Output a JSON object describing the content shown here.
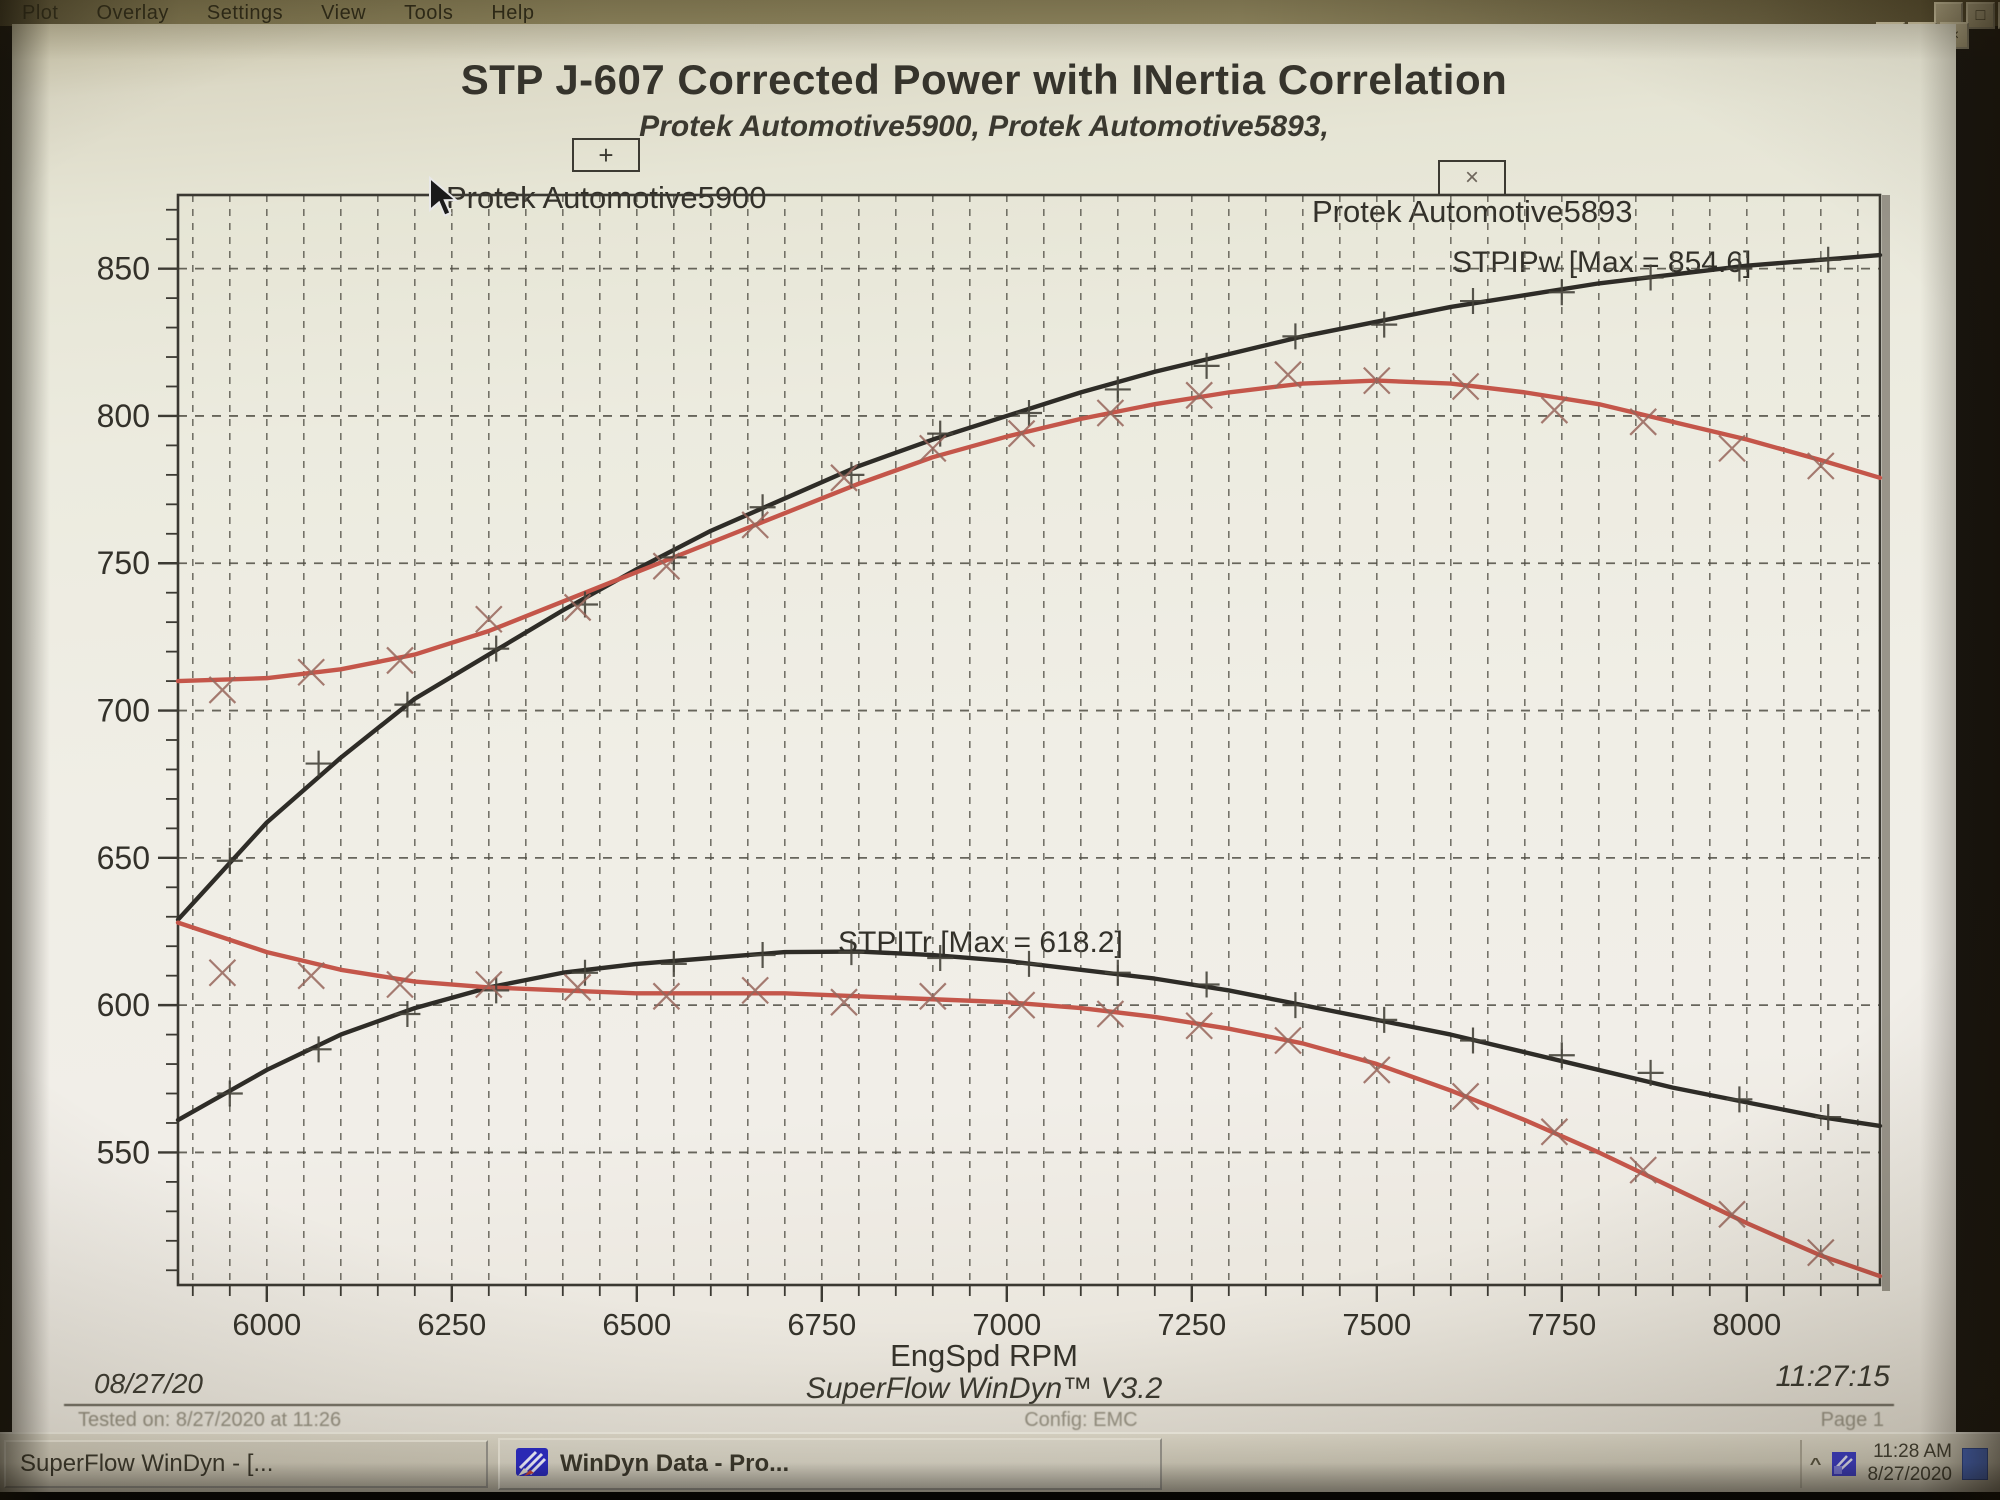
{
  "menu": {
    "items": [
      "Plot",
      "Overlay",
      "Settings",
      "View",
      "Tools",
      "Help"
    ]
  },
  "window_controls": {
    "minimize": "_",
    "maximize": "□",
    "close": "×"
  },
  "chart_data": {
    "type": "line",
    "title": "STP J-607 Corrected Power with INertia Correlation",
    "subtitle": "Protek Automotive5900, Protek Automotive5893,",
    "xlabel": "EngSpd RPM",
    "ylabel": "",
    "x_range": [
      5880,
      8180
    ],
    "y_range": [
      505,
      875
    ],
    "x_ticks": [
      6000,
      6250,
      6500,
      6750,
      7000,
      7250,
      7500,
      7750,
      8000
    ],
    "y_ticks": [
      550,
      600,
      650,
      700,
      750,
      800,
      850
    ],
    "x_minor_step": 50,
    "y_minor_tick_step": 10,
    "grid": "dashed",
    "legend": [
      {
        "symbol": "+",
        "label": "Protek Automotive5900"
      },
      {
        "symbol": "×",
        "label": "Protek Automotive5893"
      }
    ],
    "annotations": [
      "STPIPw [Max = 854.6]",
      "STPITr [Max = 618.2]"
    ],
    "series": [
      {
        "id": "stpipw-5900",
        "channel": "STPIPw",
        "run": "Protek Automotive5900",
        "color": "#2e2c27",
        "marker": "plus",
        "marker_color": "#45423a",
        "max": 854.6,
        "line": [
          [
            5880,
            629
          ],
          [
            6000,
            662
          ],
          [
            6100,
            684
          ],
          [
            6200,
            704
          ],
          [
            6300,
            719
          ],
          [
            6400,
            734
          ],
          [
            6500,
            748
          ],
          [
            6600,
            761
          ],
          [
            6700,
            772
          ],
          [
            6800,
            783
          ],
          [
            6900,
            792
          ],
          [
            7000,
            800
          ],
          [
            7100,
            808
          ],
          [
            7200,
            815
          ],
          [
            7300,
            821
          ],
          [
            7400,
            827
          ],
          [
            7500,
            832
          ],
          [
            7600,
            837
          ],
          [
            7700,
            841
          ],
          [
            7800,
            845
          ],
          [
            7900,
            848
          ],
          [
            8000,
            851
          ],
          [
            8100,
            853
          ],
          [
            8180,
            854.6
          ]
        ],
        "points": [
          [
            5950,
            649
          ],
          [
            6070,
            682
          ],
          [
            6190,
            702
          ],
          [
            6310,
            721
          ],
          [
            6430,
            736
          ],
          [
            6550,
            752
          ],
          [
            6670,
            769
          ],
          [
            6790,
            780
          ],
          [
            6910,
            794
          ],
          [
            7030,
            801
          ],
          [
            7150,
            809
          ],
          [
            7270,
            817
          ],
          [
            7390,
            827
          ],
          [
            7510,
            831
          ],
          [
            7630,
            839
          ],
          [
            7750,
            842
          ],
          [
            7870,
            847
          ],
          [
            7990,
            850
          ],
          [
            8110,
            853
          ]
        ]
      },
      {
        "id": "stpipw-5893",
        "channel": "STPIPw",
        "run": "Protek Automotive5893",
        "color": "#c4564a",
        "marker": "cross",
        "marker_color": "#96655a",
        "max": 812,
        "line": [
          [
            5880,
            710
          ],
          [
            6000,
            711
          ],
          [
            6100,
            714
          ],
          [
            6200,
            719
          ],
          [
            6300,
            727
          ],
          [
            6400,
            737
          ],
          [
            6500,
            747
          ],
          [
            6600,
            757
          ],
          [
            6700,
            767
          ],
          [
            6800,
            777
          ],
          [
            6900,
            786
          ],
          [
            7000,
            793
          ],
          [
            7100,
            799
          ],
          [
            7200,
            804
          ],
          [
            7300,
            808
          ],
          [
            7400,
            811
          ],
          [
            7500,
            812
          ],
          [
            7600,
            811
          ],
          [
            7700,
            808
          ],
          [
            7800,
            804
          ],
          [
            7900,
            798
          ],
          [
            8000,
            792
          ],
          [
            8100,
            785
          ],
          [
            8180,
            779
          ]
        ],
        "points": [
          [
            5940,
            707
          ],
          [
            6060,
            713
          ],
          [
            6180,
            717
          ],
          [
            6300,
            731
          ],
          [
            6420,
            735
          ],
          [
            6540,
            749
          ],
          [
            6660,
            763
          ],
          [
            6780,
            779
          ],
          [
            6900,
            789
          ],
          [
            7020,
            794
          ],
          [
            7140,
            801
          ],
          [
            7260,
            807
          ],
          [
            7380,
            814
          ],
          [
            7500,
            812
          ],
          [
            7620,
            810
          ],
          [
            7740,
            802
          ],
          [
            7860,
            798
          ],
          [
            7980,
            789
          ],
          [
            8100,
            783
          ]
        ]
      },
      {
        "id": "stpitr-5900",
        "channel": "STPITr",
        "run": "Protek Automotive5900",
        "color": "#2e2c27",
        "marker": "plus",
        "marker_color": "#45423a",
        "max": 618.2,
        "line": [
          [
            5880,
            561
          ],
          [
            6000,
            578
          ],
          [
            6100,
            590
          ],
          [
            6200,
            599
          ],
          [
            6300,
            606
          ],
          [
            6400,
            611
          ],
          [
            6500,
            614
          ],
          [
            6600,
            616
          ],
          [
            6700,
            618
          ],
          [
            6800,
            618.2
          ],
          [
            6900,
            617
          ],
          [
            7000,
            615
          ],
          [
            7100,
            612
          ],
          [
            7200,
            609
          ],
          [
            7300,
            605
          ],
          [
            7400,
            600
          ],
          [
            7500,
            595
          ],
          [
            7600,
            590
          ],
          [
            7700,
            584
          ],
          [
            7800,
            578
          ],
          [
            7900,
            572
          ],
          [
            8000,
            567
          ],
          [
            8100,
            562
          ],
          [
            8180,
            559
          ]
        ],
        "points": [
          [
            5950,
            570
          ],
          [
            6070,
            585
          ],
          [
            6190,
            597
          ],
          [
            6310,
            605
          ],
          [
            6430,
            611
          ],
          [
            6550,
            614
          ],
          [
            6670,
            617
          ],
          [
            6790,
            618
          ],
          [
            6910,
            616
          ],
          [
            7030,
            614
          ],
          [
            7150,
            611
          ],
          [
            7270,
            607
          ],
          [
            7390,
            600
          ],
          [
            7510,
            595
          ],
          [
            7630,
            588
          ],
          [
            7750,
            583
          ],
          [
            7870,
            577
          ],
          [
            7990,
            568
          ],
          [
            8110,
            562
          ]
        ]
      },
      {
        "id": "stpitr-5893",
        "channel": "STPITr",
        "run": "Protek Automotive5893",
        "color": "#c4564a",
        "marker": "cross",
        "marker_color": "#96655a",
        "max": 628,
        "line": [
          [
            5880,
            628
          ],
          [
            6000,
            618
          ],
          [
            6100,
            612
          ],
          [
            6200,
            608
          ],
          [
            6300,
            606
          ],
          [
            6400,
            605
          ],
          [
            6500,
            604
          ],
          [
            6600,
            604
          ],
          [
            6700,
            604
          ],
          [
            6800,
            603
          ],
          [
            6900,
            602
          ],
          [
            7000,
            601
          ],
          [
            7100,
            599
          ],
          [
            7200,
            596
          ],
          [
            7300,
            592
          ],
          [
            7400,
            587
          ],
          [
            7500,
            580
          ],
          [
            7600,
            571
          ],
          [
            7700,
            561
          ],
          [
            7800,
            550
          ],
          [
            7900,
            538
          ],
          [
            8000,
            526
          ],
          [
            8100,
            515
          ],
          [
            8180,
            508
          ]
        ],
        "points": [
          [
            5940,
            611
          ],
          [
            6060,
            610
          ],
          [
            6180,
            607
          ],
          [
            6300,
            607
          ],
          [
            6420,
            606
          ],
          [
            6540,
            603
          ],
          [
            6660,
            605
          ],
          [
            6780,
            601
          ],
          [
            6900,
            603
          ],
          [
            7020,
            600
          ],
          [
            7140,
            597
          ],
          [
            7260,
            593
          ],
          [
            7380,
            588
          ],
          [
            7500,
            578
          ],
          [
            7620,
            569
          ],
          [
            7740,
            557
          ],
          [
            7860,
            544
          ],
          [
            7980,
            529
          ],
          [
            8100,
            516
          ]
        ]
      }
    ]
  },
  "footer": {
    "date": "08/27/20",
    "app": "SuperFlow WinDyn™ V3.2",
    "time": "11:27:15"
  },
  "report_fine_print": {
    "tested": "Tested on: 8/27/2020 at 11:26",
    "config": "Config: EMC",
    "page": "Page 1"
  },
  "taskbar": {
    "buttons": [
      {
        "label": "SuperFlow WinDyn - [...",
        "active": false
      },
      {
        "label": "WinDyn Data - Pro...",
        "active": true
      }
    ],
    "tray": {
      "chevron": "^",
      "time": "11:28 AM",
      "date": "8/27/2020"
    }
  }
}
